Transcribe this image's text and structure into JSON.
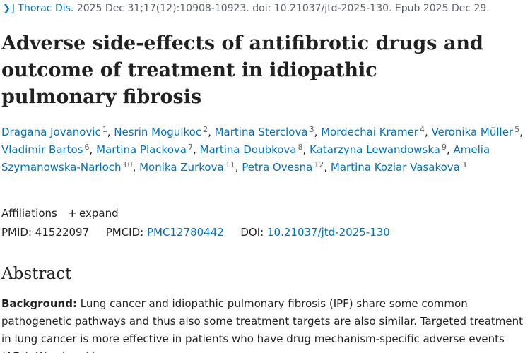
{
  "citation": {
    "journal": "J Thorac Dis.",
    "details": "2025 Dec 31;17(12):10908-10923. doi: 10.21037/jtd-2025-130. Epub 2025 Dec 29."
  },
  "article": {
    "title": "Adverse side-effects of antifibrotic drugs and outcome of treatment in idiopathic pulmonary fibrosis"
  },
  "authors": [
    {
      "name": "Dragana Jovanovic",
      "aff": "1"
    },
    {
      "name": "Nesrin Mogulkoc",
      "aff": "2"
    },
    {
      "name": "Martina Sterclova",
      "aff": "3"
    },
    {
      "name": "Mordechai Kramer",
      "aff": "4"
    },
    {
      "name": "Veronika Müller",
      "aff": "5"
    },
    {
      "name": "Vladimir Bartos",
      "aff": "6"
    },
    {
      "name": "Martina Plackova",
      "aff": "7"
    },
    {
      "name": "Martina Doubkova",
      "aff": "8"
    },
    {
      "name": "Katarzyna Lewandowska",
      "aff": "9"
    },
    {
      "name": "Amelia Szymanowska-Narloch",
      "aff": "10"
    },
    {
      "name": "Monika Zurkova",
      "aff": "11"
    },
    {
      "name": "Petra Ovesna",
      "aff": "12"
    },
    {
      "name": "Martina Koziar Vasakova",
      "aff": "3"
    }
  ],
  "affiliations": {
    "label": "Affiliations",
    "expand_label": "expand"
  },
  "identifiers": {
    "pmid_label": "PMID:",
    "pmid": "41522097",
    "pmcid_label": "PMCID:",
    "pmcid": "PMC12780442",
    "doi_label": "DOI:",
    "doi": "10.21037/jtd-2025-130"
  },
  "abstract": {
    "heading": "Abstract",
    "background_label": "Background:",
    "background_text": "Lung cancer and idiopathic pulmonary fibrosis (IPF) share some common pathogenetic pathways and thus also some treatment targets are also similar. Targeted treatment in lung cancer is more effective in patients who have drug mechanism-specific adverse events (AEs). We aimed to"
  },
  "colors": {
    "link": "#0071bc",
    "text": "#212121",
    "muted": "#5b616b"
  }
}
